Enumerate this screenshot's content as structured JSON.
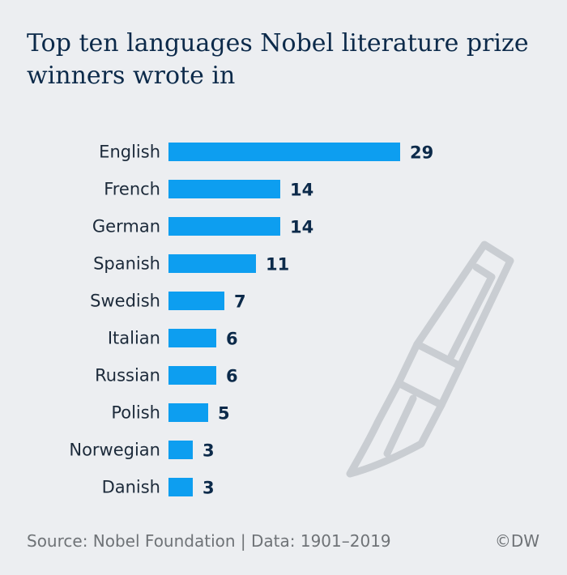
{
  "chart_data": {
    "type": "bar",
    "orientation": "horizontal",
    "title": "Top ten languages Nobel literature prize winners wrote in",
    "categories": [
      "English",
      "French",
      "German",
      "Spanish",
      "Swedish",
      "Italian",
      "Russian",
      "Polish",
      "Norwegian",
      "Danish"
    ],
    "values": [
      29,
      14,
      14,
      11,
      7,
      6,
      6,
      5,
      3,
      3
    ],
    "data_labels": [
      "29",
      "14",
      "14",
      "11",
      "7",
      "6",
      "6",
      "5",
      "3",
      "3"
    ],
    "xlabel": "",
    "ylabel": "",
    "xlim": [
      0,
      29
    ],
    "grid": false,
    "legend": "none",
    "bar_color": "#0d9ef0"
  },
  "footer": {
    "source": "Source: Nobel Foundation | Data: 1901–2019",
    "credit": "©DW"
  },
  "decoration": {
    "icon": "fountain-pen-icon",
    "color": "#c9cdd2"
  }
}
